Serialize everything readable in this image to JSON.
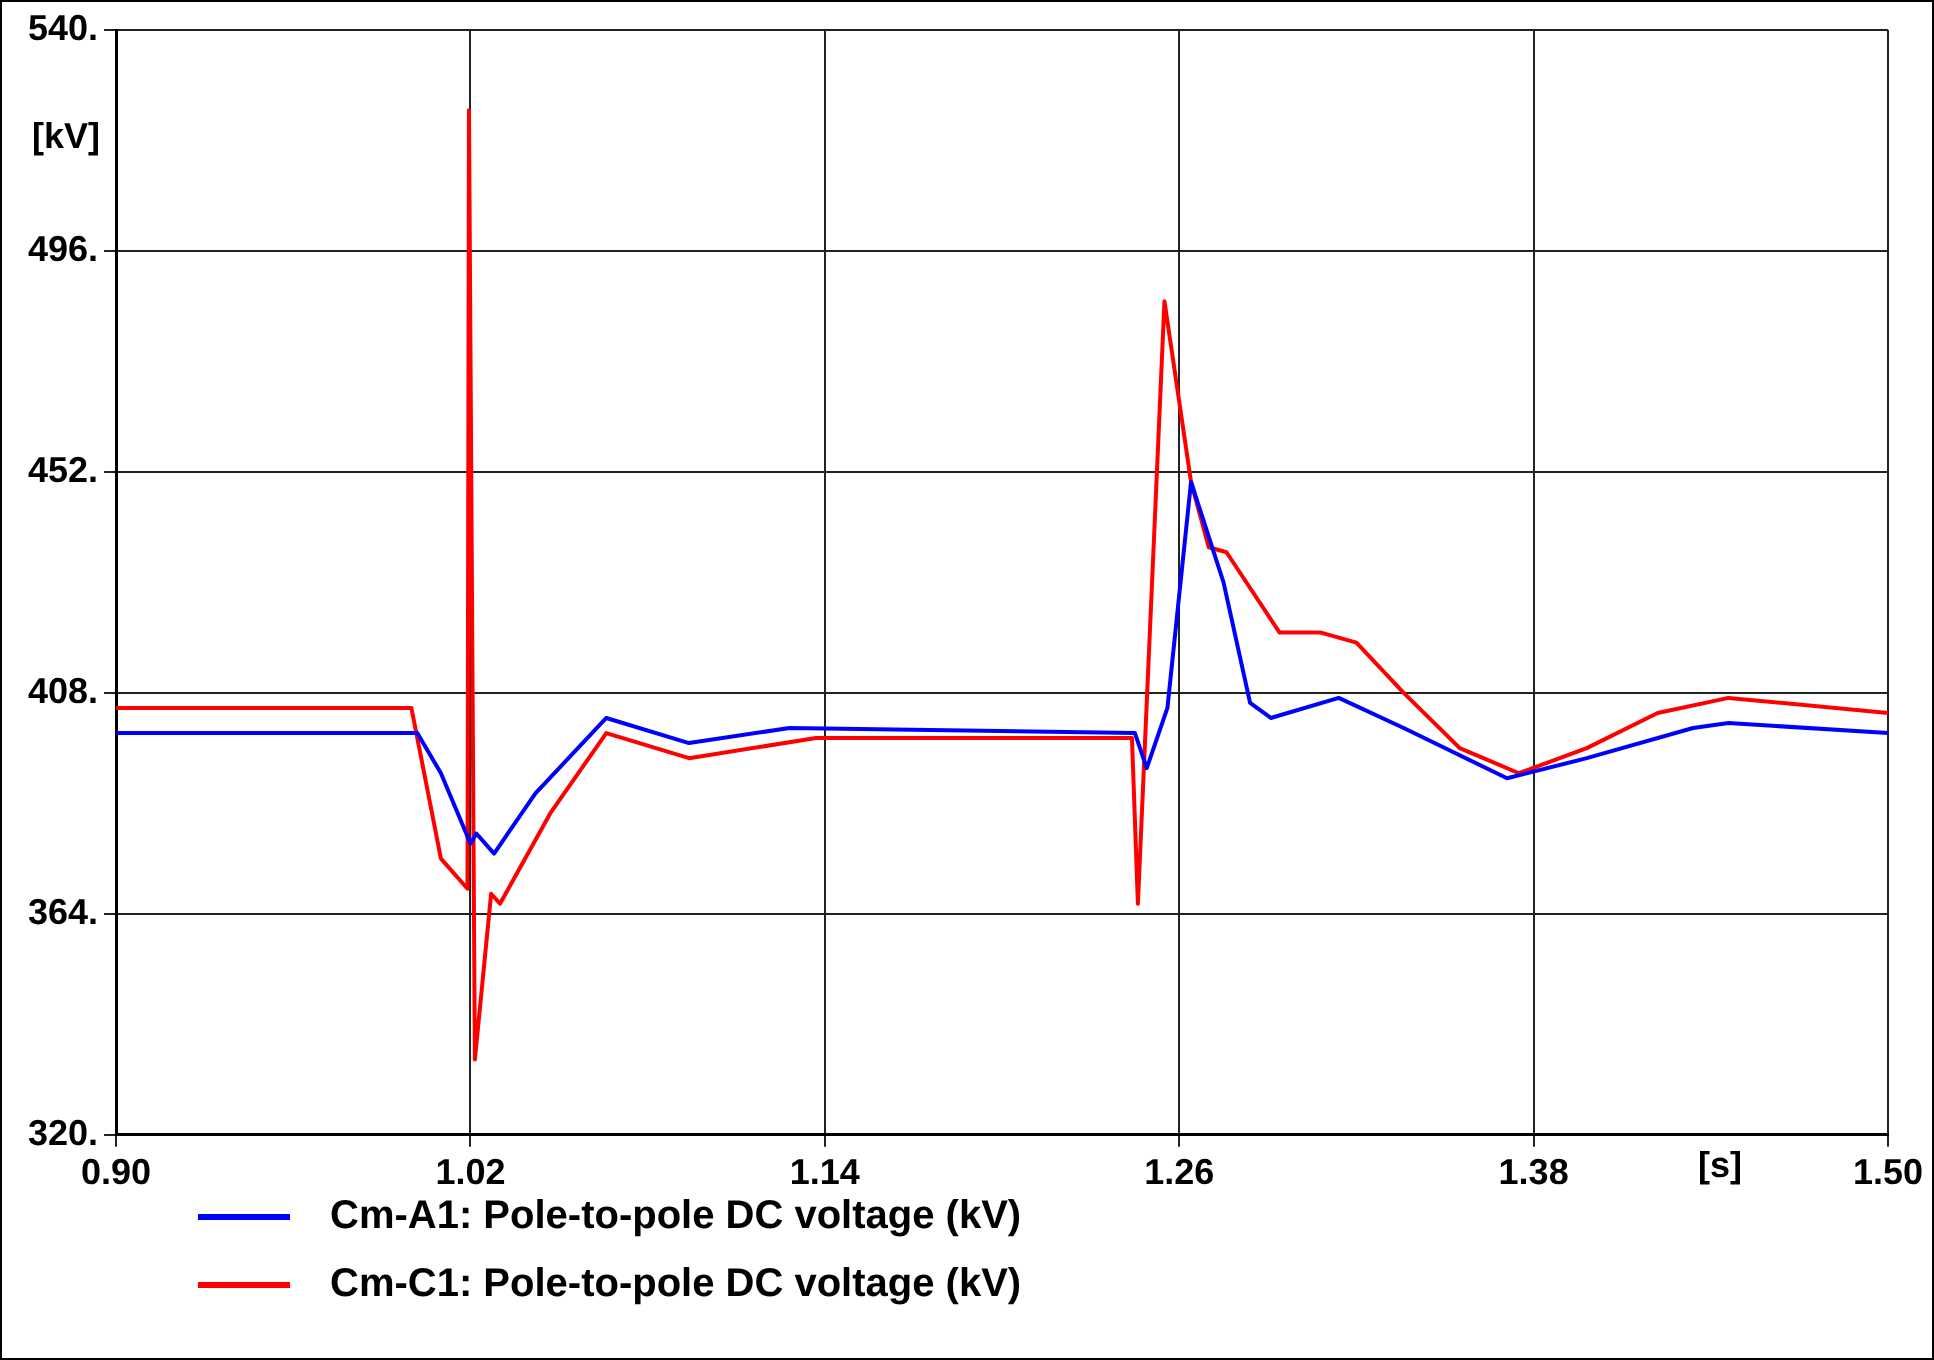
{
  "chart_data": {
    "type": "line",
    "xlabel": "[s]",
    "ylabel": "[kV]",
    "xlim": [
      0.9,
      1.5
    ],
    "xticks": [
      {
        "value": 0.9,
        "label": "0.90"
      },
      {
        "value": 1.02,
        "label": "1.02"
      },
      {
        "value": 1.14,
        "label": "1.14"
      },
      {
        "value": 1.26,
        "label": "1.26"
      },
      {
        "value": 1.38,
        "label": "1.38"
      },
      {
        "value": 1.5,
        "label": "1.50"
      }
    ],
    "ylim": [
      320,
      540
    ],
    "yticks": [
      {
        "value": 320,
        "label": "320."
      },
      {
        "value": 364,
        "label": "364."
      },
      {
        "value": 408,
        "label": "408."
      },
      {
        "value": 452,
        "label": "452."
      },
      {
        "value": 496,
        "label": "496."
      },
      {
        "value": 540,
        "label": "540."
      }
    ],
    "grid": true,
    "legend": "bottom left",
    "marker": "none",
    "line_style": "solid",
    "series": [
      {
        "name": "Cm-A1: Pole-to-pole DC voltage (kV)",
        "color": "#0000ff",
        "x": [
          0.9,
          1.002,
          1.01,
          1.02,
          1.022,
          1.028,
          1.042,
          1.066,
          1.094,
          1.128,
          1.245,
          1.249,
          1.256,
          1.264,
          1.275,
          1.284,
          1.291,
          1.314,
          1.336,
          1.371,
          1.398,
          1.434,
          1.446,
          1.5
        ],
        "values": [
          400,
          400,
          392,
          378,
          380,
          376,
          388,
          403,
          398,
          401,
          400,
          393,
          405,
          450,
          430,
          406,
          403,
          407,
          401,
          391,
          395,
          401,
          402,
          400
        ]
      },
      {
        "name": "Cm-C1: Pole-to-pole DC voltage (kV)",
        "color": "#ff0000",
        "x": [
          0.9,
          1.0,
          1.01,
          1.019,
          1.0195,
          1.0215,
          1.027,
          1.03,
          1.047,
          1.066,
          1.094,
          1.137,
          1.244,
          1.246,
          1.255,
          1.264,
          1.27,
          1.276,
          1.294,
          1.308,
          1.32,
          1.336,
          1.355,
          1.375,
          1.398,
          1.422,
          1.446,
          1.5
        ],
        "values": [
          405,
          405,
          375,
          369,
          524,
          335,
          368,
          366,
          384,
          400,
          395,
          399,
          399,
          366,
          486,
          450,
          437,
          436,
          420,
          420,
          418,
          408,
          397,
          392,
          397,
          404,
          407,
          404
        ]
      }
    ]
  }
}
